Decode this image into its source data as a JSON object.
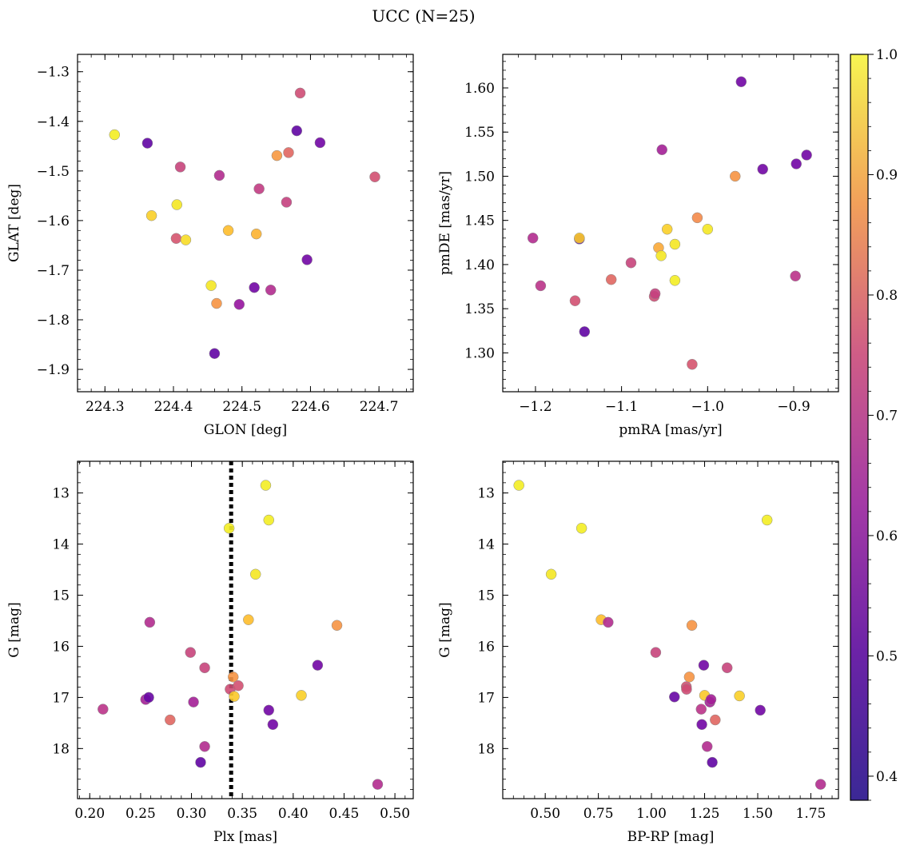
{
  "figure": {
    "title": "UCC (N=25)"
  },
  "colorbar": {
    "range": [
      0.38,
      1.0
    ],
    "ticks": [
      0.4,
      0.5,
      0.6,
      0.7,
      0.8,
      0.9,
      1.0
    ],
    "tick_labels": [
      "0.4",
      "0.5",
      "0.6",
      "0.7",
      "0.8",
      "0.9",
      "1.0"
    ],
    "colormap": "plasma"
  },
  "chart_data": [
    {
      "type": "scatter",
      "xlabel": "GLON [deg]",
      "ylabel": "GLAT [deg]",
      "xlim": [
        224.26,
        224.75
      ],
      "ylim": [
        -1.945,
        -1.265
      ],
      "xticks": [
        224.3,
        224.4,
        224.5,
        224.6,
        224.7
      ],
      "xtick_labels": [
        "224.3",
        "224.4",
        "224.5",
        "224.6",
        "224.7"
      ],
      "yticks": [
        -1.9,
        -1.8,
        -1.7,
        -1.6,
        -1.5,
        -1.4,
        -1.3
      ],
      "ytick_labels": [
        "−1.9",
        "−1.8",
        "−1.7",
        "−1.6",
        "−1.5",
        "−1.4",
        "−1.3"
      ],
      "points": [
        {
          "x": 224.314,
          "y": -1.427,
          "c": 0.98
        },
        {
          "x": 224.362,
          "y": -1.444,
          "c": 0.42
        },
        {
          "x": 224.368,
          "y": -1.59,
          "c": 0.93
        },
        {
          "x": 224.405,
          "y": -1.568,
          "c": 0.97
        },
        {
          "x": 224.404,
          "y": -1.636,
          "c": 0.68
        },
        {
          "x": 224.41,
          "y": -1.492,
          "c": 0.64
        },
        {
          "x": 224.418,
          "y": -1.639,
          "c": 0.95
        },
        {
          "x": 224.455,
          "y": -1.731,
          "c": 0.97
        },
        {
          "x": 224.46,
          "y": -1.868,
          "c": 0.42
        },
        {
          "x": 224.463,
          "y": -1.767,
          "c": 0.82
        },
        {
          "x": 224.467,
          "y": -1.509,
          "c": 0.58
        },
        {
          "x": 224.48,
          "y": -1.62,
          "c": 0.9
        },
        {
          "x": 224.496,
          "y": -1.769,
          "c": 0.52
        },
        {
          "x": 224.518,
          "y": -1.735,
          "c": 0.45
        },
        {
          "x": 224.521,
          "y": -1.627,
          "c": 0.88
        },
        {
          "x": 224.525,
          "y": -1.536,
          "c": 0.62
        },
        {
          "x": 224.542,
          "y": -1.74,
          "c": 0.58
        },
        {
          "x": 224.551,
          "y": -1.469,
          "c": 0.83
        },
        {
          "x": 224.565,
          "y": -1.563,
          "c": 0.63
        },
        {
          "x": 224.568,
          "y": -1.463,
          "c": 0.72
        },
        {
          "x": 224.58,
          "y": -1.419,
          "c": 0.42
        },
        {
          "x": 224.585,
          "y": -1.343,
          "c": 0.66
        },
        {
          "x": 224.595,
          "y": -1.679,
          "c": 0.45
        },
        {
          "x": 224.614,
          "y": -1.443,
          "c": 0.45
        },
        {
          "x": 224.694,
          "y": -1.512,
          "c": 0.67
        }
      ]
    },
    {
      "type": "scatter",
      "xlabel": "pmRA [mas/yr]",
      "ylabel": "pmDE [mas/yr]",
      "xlim": [
        -1.238,
        -0.848
      ],
      "ylim": [
        1.256,
        1.638
      ],
      "xticks": [
        -1.2,
        -1.1,
        -1.0,
        -0.9
      ],
      "xtick_labels": [
        "−1.2",
        "−1.1",
        "−1.0",
        "−0.9"
      ],
      "yticks": [
        1.3,
        1.35,
        1.4,
        1.45,
        1.5,
        1.55,
        1.6
      ],
      "ytick_labels": [
        "1.30",
        "1.35",
        "1.40",
        "1.45",
        "1.50",
        "1.55",
        "1.60"
      ],
      "points": [
        {
          "x": -1.203,
          "y": 1.43,
          "c": 0.58
        },
        {
          "x": -1.194,
          "y": 1.376,
          "c": 0.6
        },
        {
          "x": -1.154,
          "y": 1.359,
          "c": 0.67
        },
        {
          "x": -1.149,
          "y": 1.429,
          "c": 0.4
        },
        {
          "x": -1.149,
          "y": 1.43,
          "c": 0.92
        },
        {
          "x": -1.143,
          "y": 1.324,
          "c": 0.42
        },
        {
          "x": -1.112,
          "y": 1.383,
          "c": 0.72
        },
        {
          "x": -1.089,
          "y": 1.402,
          "c": 0.64
        },
        {
          "x": -1.062,
          "y": 1.364,
          "c": 0.66
        },
        {
          "x": -1.061,
          "y": 1.367,
          "c": 0.63
        },
        {
          "x": -1.057,
          "y": 1.419,
          "c": 0.86
        },
        {
          "x": -1.054,
          "y": 1.41,
          "c": 0.97
        },
        {
          "x": -1.053,
          "y": 1.53,
          "c": 0.55
        },
        {
          "x": -1.047,
          "y": 1.44,
          "c": 0.93
        },
        {
          "x": -1.038,
          "y": 1.423,
          "c": 0.97
        },
        {
          "x": -1.038,
          "y": 1.382,
          "c": 0.98
        },
        {
          "x": -1.018,
          "y": 1.287,
          "c": 0.68
        },
        {
          "x": -1.012,
          "y": 1.453,
          "c": 0.8
        },
        {
          "x": -1.0,
          "y": 1.44,
          "c": 0.97
        },
        {
          "x": -0.968,
          "y": 1.5,
          "c": 0.82
        },
        {
          "x": -0.961,
          "y": 1.607,
          "c": 0.45
        },
        {
          "x": -0.936,
          "y": 1.508,
          "c": 0.45
        },
        {
          "x": -0.898,
          "y": 1.387,
          "c": 0.6
        },
        {
          "x": -0.897,
          "y": 1.514,
          "c": 0.45
        },
        {
          "x": -0.885,
          "y": 1.524,
          "c": 0.45
        }
      ]
    },
    {
      "type": "scatter",
      "xlabel": "Plx [mas]",
      "ylabel": "G [mag]",
      "xlim": [
        0.188,
        0.518
      ],
      "ylim": [
        18.98,
        12.38
      ],
      "y_inverted": true,
      "xticks": [
        0.2,
        0.25,
        0.3,
        0.35,
        0.4,
        0.45,
        0.5
      ],
      "xtick_labels": [
        "0.20",
        "0.25",
        "0.30",
        "0.35",
        "0.40",
        "0.45",
        "0.50"
      ],
      "yticks": [
        13,
        14,
        15,
        16,
        17,
        18
      ],
      "ytick_labels": [
        "13",
        "14",
        "15",
        "16",
        "17",
        "18"
      ],
      "vline_x": 0.339,
      "points": [
        {
          "x": 0.213,
          "y": 17.23,
          "c": 0.6
        },
        {
          "x": 0.255,
          "y": 17.04,
          "c": 0.55
        },
        {
          "x": 0.258,
          "y": 17.0,
          "c": 0.43
        },
        {
          "x": 0.259,
          "y": 15.53,
          "c": 0.58
        },
        {
          "x": 0.279,
          "y": 17.44,
          "c": 0.72
        },
        {
          "x": 0.299,
          "y": 16.12,
          "c": 0.64
        },
        {
          "x": 0.302,
          "y": 17.09,
          "c": 0.55
        },
        {
          "x": 0.309,
          "y": 18.27,
          "c": 0.42
        },
        {
          "x": 0.313,
          "y": 16.42,
          "c": 0.64
        },
        {
          "x": 0.313,
          "y": 17.96,
          "c": 0.58
        },
        {
          "x": 0.337,
          "y": 13.69,
          "c": 0.98
        },
        {
          "x": 0.338,
          "y": 16.84,
          "c": 0.66
        },
        {
          "x": 0.341,
          "y": 16.6,
          "c": 0.82
        },
        {
          "x": 0.342,
          "y": 16.98,
          "c": 0.92
        },
        {
          "x": 0.346,
          "y": 16.77,
          "c": 0.67
        },
        {
          "x": 0.356,
          "y": 15.48,
          "c": 0.9
        },
        {
          "x": 0.363,
          "y": 14.59,
          "c": 0.97
        },
        {
          "x": 0.373,
          "y": 12.85,
          "c": 0.98
        },
        {
          "x": 0.376,
          "y": 13.53,
          "c": 0.98
        },
        {
          "x": 0.376,
          "y": 17.25,
          "c": 0.45
        },
        {
          "x": 0.38,
          "y": 17.53,
          "c": 0.45
        },
        {
          "x": 0.408,
          "y": 16.96,
          "c": 0.93
        },
        {
          "x": 0.424,
          "y": 16.37,
          "c": 0.45
        },
        {
          "x": 0.443,
          "y": 15.59,
          "c": 0.82
        },
        {
          "x": 0.483,
          "y": 18.7,
          "c": 0.58
        }
      ]
    },
    {
      "type": "scatter",
      "xlabel": "BP-RP [mag]",
      "ylabel": "G [mag]",
      "xlim": [
        0.3,
        1.88
      ],
      "ylim": [
        18.98,
        12.38
      ],
      "y_inverted": true,
      "xticks": [
        0.5,
        0.75,
        1.0,
        1.25,
        1.5,
        1.75
      ],
      "xtick_labels": [
        "0.50",
        "0.75",
        "1.00",
        "1.25",
        "1.50",
        "1.75"
      ],
      "yticks": [
        13,
        14,
        15,
        16,
        17,
        18
      ],
      "ytick_labels": [
        "13",
        "14",
        "15",
        "16",
        "17",
        "18"
      ],
      "points": [
        {
          "x": 0.376,
          "y": 12.85,
          "c": 0.98
        },
        {
          "x": 0.528,
          "y": 14.59,
          "c": 0.97
        },
        {
          "x": 0.671,
          "y": 13.69,
          "c": 0.98
        },
        {
          "x": 0.763,
          "y": 15.48,
          "c": 0.9
        },
        {
          "x": 0.796,
          "y": 15.53,
          "c": 0.58
        },
        {
          "x": 1.02,
          "y": 16.12,
          "c": 0.64
        },
        {
          "x": 1.108,
          "y": 16.99,
          "c": 0.43
        },
        {
          "x": 1.164,
          "y": 16.79,
          "c": 0.67
        },
        {
          "x": 1.165,
          "y": 16.84,
          "c": 0.66
        },
        {
          "x": 1.178,
          "y": 16.6,
          "c": 0.82
        },
        {
          "x": 1.19,
          "y": 15.59,
          "c": 0.82
        },
        {
          "x": 1.234,
          "y": 17.23,
          "c": 0.6
        },
        {
          "x": 1.237,
          "y": 17.53,
          "c": 0.45
        },
        {
          "x": 1.246,
          "y": 16.37,
          "c": 0.45
        },
        {
          "x": 1.25,
          "y": 16.96,
          "c": 0.92
        },
        {
          "x": 1.262,
          "y": 17.96,
          "c": 0.58
        },
        {
          "x": 1.275,
          "y": 17.09,
          "c": 0.55
        },
        {
          "x": 1.28,
          "y": 17.04,
          "c": 0.55
        },
        {
          "x": 1.286,
          "y": 18.27,
          "c": 0.42
        },
        {
          "x": 1.3,
          "y": 17.44,
          "c": 0.72
        },
        {
          "x": 1.356,
          "y": 16.42,
          "c": 0.64
        },
        {
          "x": 1.414,
          "y": 16.97,
          "c": 0.93
        },
        {
          "x": 1.512,
          "y": 17.25,
          "c": 0.45
        },
        {
          "x": 1.544,
          "y": 13.53,
          "c": 0.98
        },
        {
          "x": 1.796,
          "y": 18.7,
          "c": 0.58
        }
      ]
    }
  ]
}
